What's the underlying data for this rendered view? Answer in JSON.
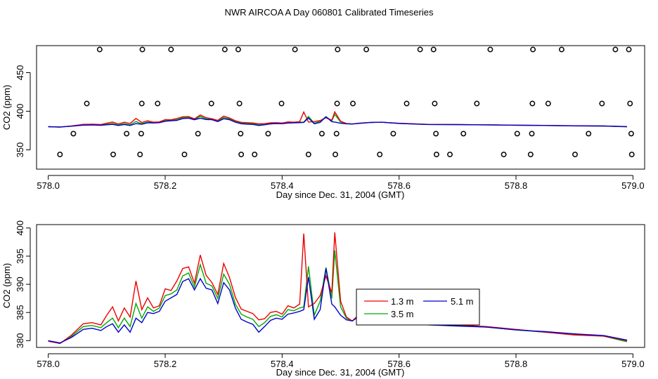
{
  "figure_title": "NWR AIRCOA A  Day 060801  Calibrated Timeseries",
  "chart_data": [
    {
      "type": "scatter+line",
      "title": "",
      "xlabel": "Day since Dec. 31, 2004 (GMT)",
      "ylabel": "CO2 (ppm)",
      "xlim": [
        577.98,
        579.02
      ],
      "ylim": [
        325,
        485
      ],
      "x_ticks": [
        578.0,
        578.2,
        578.4,
        578.6,
        578.8,
        579.0
      ],
      "x_tick_labels": [
        "578.0",
        "578.2",
        "578.4",
        "578.6",
        "578.8",
        "579.0"
      ],
      "y_ticks": [
        350,
        400,
        450
      ],
      "y_tick_labels": [
        "350",
        "400",
        "450"
      ],
      "scatter_points": [
        {
          "x": 578.02,
          "y": 344
        },
        {
          "x": 578.043,
          "y": 371
        },
        {
          "x": 578.066,
          "y": 410
        },
        {
          "x": 578.088,
          "y": 480
        },
        {
          "x": 578.111,
          "y": 344
        },
        {
          "x": 578.134,
          "y": 371
        },
        {
          "x": 578.157,
          "y": 344
        },
        {
          "x": 578.159,
          "y": 371
        },
        {
          "x": 578.16,
          "y": 410
        },
        {
          "x": 578.161,
          "y": 480
        },
        {
          "x": 578.187,
          "y": 410
        },
        {
          "x": 578.21,
          "y": 480
        },
        {
          "x": 578.233,
          "y": 344
        },
        {
          "x": 578.256,
          "y": 371
        },
        {
          "x": 578.279,
          "y": 410
        },
        {
          "x": 578.302,
          "y": 480
        },
        {
          "x": 578.325,
          "y": 480
        },
        {
          "x": 578.327,
          "y": 410
        },
        {
          "x": 578.329,
          "y": 371
        },
        {
          "x": 578.33,
          "y": 344
        },
        {
          "x": 578.353,
          "y": 344
        },
        {
          "x": 578.376,
          "y": 371
        },
        {
          "x": 578.399,
          "y": 410
        },
        {
          "x": 578.422,
          "y": 480
        },
        {
          "x": 578.445,
          "y": 344
        },
        {
          "x": 578.468,
          "y": 371
        },
        {
          "x": 578.491,
          "y": 344
        },
        {
          "x": 578.493,
          "y": 371
        },
        {
          "x": 578.494,
          "y": 410
        },
        {
          "x": 578.495,
          "y": 480
        },
        {
          "x": 578.521,
          "y": 410
        },
        {
          "x": 578.544,
          "y": 480
        },
        {
          "x": 578.567,
          "y": 344
        },
        {
          "x": 578.59,
          "y": 371
        },
        {
          "x": 578.613,
          "y": 410
        },
        {
          "x": 578.636,
          "y": 480
        },
        {
          "x": 578.659,
          "y": 480
        },
        {
          "x": 578.661,
          "y": 410
        },
        {
          "x": 578.663,
          "y": 371
        },
        {
          "x": 578.664,
          "y": 344
        },
        {
          "x": 578.687,
          "y": 344
        },
        {
          "x": 578.71,
          "y": 371
        },
        {
          "x": 578.733,
          "y": 410
        },
        {
          "x": 578.756,
          "y": 480
        },
        {
          "x": 578.779,
          "y": 344
        },
        {
          "x": 578.802,
          "y": 371
        },
        {
          "x": 578.825,
          "y": 344
        },
        {
          "x": 578.827,
          "y": 371
        },
        {
          "x": 578.828,
          "y": 410
        },
        {
          "x": 578.829,
          "y": 480
        },
        {
          "x": 578.855,
          "y": 410
        },
        {
          "x": 578.878,
          "y": 480
        },
        {
          "x": 578.901,
          "y": 344
        },
        {
          "x": 578.924,
          "y": 371
        },
        {
          "x": 578.947,
          "y": 410
        },
        {
          "x": 578.97,
          "y": 480
        },
        {
          "x": 578.993,
          "y": 480
        },
        {
          "x": 578.995,
          "y": 410
        },
        {
          "x": 578.997,
          "y": 371
        },
        {
          "x": 578.998,
          "y": 344
        }
      ],
      "series_ref": "shared"
    },
    {
      "type": "line",
      "title": "",
      "xlabel": "Day since Dec. 31, 2004 (GMT)",
      "ylabel": "CO2 (ppm)",
      "xlim": [
        577.98,
        579.02
      ],
      "ylim": [
        378.8,
        400.6
      ],
      "x_ticks": [
        578.0,
        578.2,
        578.4,
        578.6,
        578.8,
        579.0
      ],
      "x_tick_labels": [
        "578.0",
        "578.2",
        "578.4",
        "578.6",
        "578.8",
        "579.0"
      ],
      "y_ticks": [
        380,
        385,
        390,
        395,
        400
      ],
      "y_tick_labels": [
        "380",
        "385",
        "390",
        "395",
        "400"
      ],
      "legend": {
        "placement": "center-right",
        "entries": [
          "1.3 m",
          "5.1 m",
          "3.5 m"
        ]
      },
      "series_ref": "shared"
    }
  ],
  "series": [
    {
      "name": "1.3 m",
      "color": "#ee0000",
      "x": [
        578.0,
        578.02,
        578.04,
        578.06,
        578.075,
        578.09,
        578.1,
        578.11,
        578.12,
        578.13,
        578.14,
        578.15,
        578.16,
        578.17,
        578.18,
        578.19,
        578.2,
        578.21,
        578.22,
        578.23,
        578.24,
        578.25,
        578.26,
        578.27,
        578.28,
        578.29,
        578.3,
        578.31,
        578.32,
        578.33,
        578.34,
        578.35,
        578.36,
        578.37,
        578.38,
        578.39,
        578.4,
        578.41,
        578.42,
        578.43,
        578.437,
        578.445,
        578.455,
        578.465,
        578.475,
        578.485,
        578.49,
        578.5,
        578.51,
        578.52,
        578.53,
        578.55,
        578.57,
        578.6,
        578.65,
        578.7,
        578.75,
        578.8,
        578.85,
        578.9,
        578.95,
        578.99
      ],
      "values": [
        379.9,
        379.5,
        381.0,
        383.0,
        383.2,
        382.8,
        384.5,
        386.0,
        383.5,
        385.8,
        384.2,
        390.6,
        385.5,
        387.6,
        385.8,
        386.2,
        389.2,
        388.9,
        390.6,
        392.8,
        393.1,
        390.2,
        395.2,
        391.6,
        390.3,
        388.2,
        393.7,
        391.2,
        387.7,
        385.6,
        385.2,
        384.8,
        383.7,
        383.9,
        385.0,
        385.2,
        384.7,
        386.2,
        385.8,
        386.5,
        399.0,
        386.0,
        386.6,
        388.0,
        391.5,
        388.5,
        399.2,
        387.0,
        384.2,
        383.5,
        384.5,
        385.5,
        385.7,
        384.5,
        383.0,
        382.8,
        382.5,
        382.0,
        381.5,
        381.0,
        380.8,
        380.0
      ]
    },
    {
      "name": "5.1 m",
      "color": "#0000cc",
      "x": [
        578.0,
        578.02,
        578.04,
        578.06,
        578.075,
        578.09,
        578.1,
        578.11,
        578.12,
        578.13,
        578.14,
        578.15,
        578.16,
        578.17,
        578.18,
        578.19,
        578.2,
        578.21,
        578.22,
        578.23,
        578.24,
        578.25,
        578.26,
        578.27,
        578.28,
        578.29,
        578.3,
        578.31,
        578.32,
        578.33,
        578.34,
        578.35,
        578.36,
        578.37,
        578.38,
        578.39,
        578.4,
        578.41,
        578.42,
        578.43,
        578.437,
        578.445,
        578.455,
        578.465,
        578.475,
        578.485,
        578.49,
        578.5,
        578.51,
        578.52,
        578.53,
        578.55,
        578.57,
        578.6,
        578.65,
        578.7,
        578.75,
        578.8,
        578.85,
        578.9,
        578.95,
        578.99
      ],
      "values": [
        380.0,
        379.6,
        380.6,
        382.0,
        382.2,
        381.8,
        382.5,
        383.0,
        381.5,
        382.8,
        381.5,
        384.0,
        383.2,
        385.0,
        384.8,
        385.2,
        387.0,
        387.6,
        388.2,
        390.5,
        391.0,
        389.0,
        391.0,
        389.3,
        389.0,
        386.6,
        390.3,
        389.0,
        385.8,
        383.8,
        383.3,
        382.9,
        381.5,
        382.5,
        383.6,
        384.0,
        383.8,
        384.7,
        384.9,
        385.2,
        385.5,
        391.3,
        383.8,
        385.5,
        392.8,
        386.5,
        386.0,
        384.5,
        383.7,
        383.5,
        384.2,
        385.4,
        385.8,
        384.2,
        382.8,
        382.6,
        382.4,
        381.9,
        381.6,
        381.2,
        380.9,
        380.1
      ]
    },
    {
      "name": "3.5 m",
      "color": "#00aa00",
      "x": [
        578.0,
        578.02,
        578.04,
        578.06,
        578.075,
        578.09,
        578.1,
        578.11,
        578.12,
        578.13,
        578.14,
        578.15,
        578.16,
        578.17,
        578.18,
        578.19,
        578.2,
        578.21,
        578.22,
        578.23,
        578.24,
        578.25,
        578.26,
        578.27,
        578.28,
        578.29,
        578.3,
        578.31,
        578.32,
        578.33,
        578.34,
        578.35,
        578.36,
        578.37,
        578.38,
        578.39,
        578.4,
        578.41,
        578.42,
        578.43,
        578.437,
        578.445,
        578.455,
        578.465,
        578.475,
        578.485,
        578.49,
        578.5,
        578.51,
        578.52,
        578.53,
        578.55,
        578.57,
        578.6,
        578.65,
        578.7,
        578.75,
        578.8,
        578.85,
        578.9,
        578.95,
        578.99
      ],
      "values": [
        380.0,
        379.5,
        380.8,
        382.5,
        382.7,
        382.3,
        383.2,
        384.0,
        382.3,
        384.0,
        382.5,
        386.6,
        384.0,
        386.0,
        385.2,
        385.8,
        388.0,
        388.3,
        389.0,
        391.5,
        392.0,
        389.5,
        393.5,
        390.2,
        389.7,
        387.5,
        391.8,
        390.0,
        386.5,
        384.7,
        384.2,
        383.8,
        382.5,
        383.2,
        384.3,
        384.6,
        384.2,
        385.5,
        385.3,
        385.8,
        386.0,
        393.2,
        384.5,
        387.0,
        393.0,
        387.5,
        396.0,
        386.0,
        384.0,
        383.5,
        384.3,
        385.4,
        385.7,
        384.3,
        382.9,
        382.7,
        382.4,
        381.9,
        381.5,
        381.1,
        380.8,
        379.8
      ]
    }
  ]
}
